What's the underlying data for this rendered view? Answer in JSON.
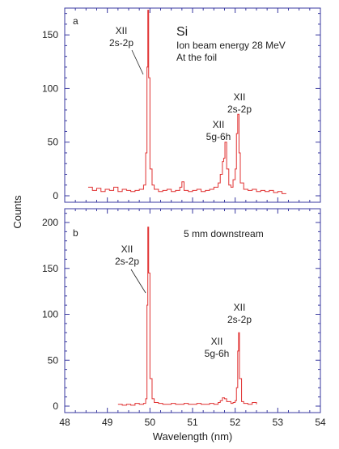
{
  "chart_data": [
    {
      "type": "line",
      "panel_label": "a",
      "element": "Si",
      "condition_lines": [
        "Ion beam energy 28 MeV",
        "At the foil"
      ],
      "xlim": [
        48,
        54
      ],
      "ylim": [
        0,
        175
      ],
      "y_ticks": [
        0,
        50,
        100,
        150
      ],
      "ylabel": "Counts",
      "series": [
        {
          "color": "#e03030",
          "points": [
            [
              48.55,
              8
            ],
            [
              48.65,
              5
            ],
            [
              48.75,
              7
            ],
            [
              48.85,
              4
            ],
            [
              48.95,
              6
            ],
            [
              49.05,
              5
            ],
            [
              49.15,
              8
            ],
            [
              49.25,
              4
            ],
            [
              49.35,
              6
            ],
            [
              49.45,
              5
            ],
            [
              49.55,
              4
            ],
            [
              49.65,
              5
            ],
            [
              49.75,
              6
            ],
            [
              49.85,
              10
            ],
            [
              49.9,
              40
            ],
            [
              49.93,
              120
            ],
            [
              49.95,
              173
            ],
            [
              49.97,
              110
            ],
            [
              50.0,
              25
            ],
            [
              50.05,
              10
            ],
            [
              50.1,
              6
            ],
            [
              50.2,
              4
            ],
            [
              50.3,
              5
            ],
            [
              50.4,
              6
            ],
            [
              50.5,
              4
            ],
            [
              50.6,
              5
            ],
            [
              50.7,
              8
            ],
            [
              50.75,
              13
            ],
            [
              50.8,
              5
            ],
            [
              50.9,
              4
            ],
            [
              51.0,
              5
            ],
            [
              51.1,
              6
            ],
            [
              51.2,
              4
            ],
            [
              51.3,
              5
            ],
            [
              51.4,
              6
            ],
            [
              51.5,
              8
            ],
            [
              51.6,
              12
            ],
            [
              51.65,
              20
            ],
            [
              51.7,
              32
            ],
            [
              51.73,
              35
            ],
            [
              51.76,
              50
            ],
            [
              51.8,
              25
            ],
            [
              51.85,
              10
            ],
            [
              51.9,
              8
            ],
            [
              51.95,
              15
            ],
            [
              52.0,
              25
            ],
            [
              52.03,
              58
            ],
            [
              52.06,
              76
            ],
            [
              52.09,
              40
            ],
            [
              52.12,
              12
            ],
            [
              52.2,
              6
            ],
            [
              52.3,
              5
            ],
            [
              52.4,
              6
            ],
            [
              52.5,
              4
            ],
            [
              52.6,
              5
            ],
            [
              52.7,
              4
            ],
            [
              52.8,
              5
            ],
            [
              52.9,
              3
            ],
            [
              53.0,
              4
            ],
            [
              53.1,
              2
            ],
            [
              53.2,
              2
            ]
          ]
        }
      ],
      "annotations": [
        {
          "lines": [
            "XII",
            "2s-2p"
          ],
          "points_to": [
            49.95,
            130
          ]
        },
        {
          "lines": [
            "XII",
            "5g-6h"
          ]
        },
        {
          "lines": [
            "XII",
            "2s-2p"
          ]
        }
      ]
    },
    {
      "type": "line",
      "panel_label": "b",
      "condition_lines": [
        "5 mm downstream"
      ],
      "xlim": [
        48,
        54
      ],
      "ylim": [
        0,
        215
      ],
      "x_ticks": [
        48,
        49,
        50,
        51,
        52,
        53,
        54
      ],
      "y_ticks": [
        0,
        50,
        100,
        150,
        200
      ],
      "xlabel": "Wavelength (nm)",
      "ylabel": "Counts",
      "series": [
        {
          "color": "#e03030",
          "points": [
            [
              49.25,
              2
            ],
            [
              49.35,
              1
            ],
            [
              49.45,
              2
            ],
            [
              49.55,
              1
            ],
            [
              49.65,
              3
            ],
            [
              49.75,
              2
            ],
            [
              49.85,
              3
            ],
            [
              49.9,
              8
            ],
            [
              49.93,
              110
            ],
            [
              49.95,
              195
            ],
            [
              49.97,
              145
            ],
            [
              50.0,
              30
            ],
            [
              50.05,
              8
            ],
            [
              50.1,
              4
            ],
            [
              50.2,
              3
            ],
            [
              50.3,
              2
            ],
            [
              50.4,
              2
            ],
            [
              50.5,
              3
            ],
            [
              50.6,
              2
            ],
            [
              50.7,
              2
            ],
            [
              50.8,
              3
            ],
            [
              50.9,
              2
            ],
            [
              51.0,
              2
            ],
            [
              51.1,
              3
            ],
            [
              51.2,
              2
            ],
            [
              51.3,
              2
            ],
            [
              51.4,
              3
            ],
            [
              51.5,
              2
            ],
            [
              51.6,
              4
            ],
            [
              51.65,
              6
            ],
            [
              51.7,
              9
            ],
            [
              51.75,
              8
            ],
            [
              51.8,
              5
            ],
            [
              51.9,
              3
            ],
            [
              51.95,
              4
            ],
            [
              52.0,
              6
            ],
            [
              52.03,
              20
            ],
            [
              52.06,
              60
            ],
            [
              52.08,
              80
            ],
            [
              52.1,
              30
            ],
            [
              52.15,
              5
            ],
            [
              52.2,
              3
            ],
            [
              52.3,
              2
            ],
            [
              52.4,
              4
            ],
            [
              52.5,
              2
            ]
          ]
        }
      ],
      "annotations": [
        {
          "lines": [
            "XII",
            "2s-2p"
          ],
          "points_to": [
            49.95,
            110
          ]
        },
        {
          "lines": [
            "XII",
            "2s-2p"
          ]
        },
        {
          "lines": [
            "XII",
            "5g-6h"
          ]
        }
      ]
    }
  ]
}
